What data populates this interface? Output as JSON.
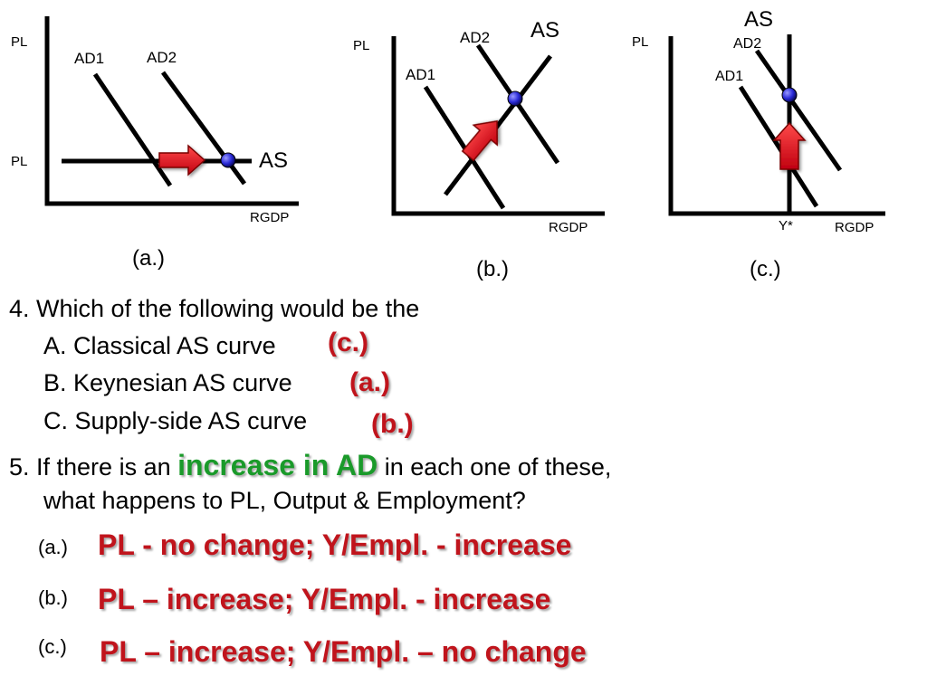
{
  "diagrams": [
    {
      "id": "a",
      "caption": "(a.)",
      "y_label": "PL",
      "price_level_label": "PL",
      "x_label": "RGDP",
      "ad1_label": "AD1",
      "ad2_label": "AD2",
      "as_label": "AS",
      "as_shape": "horizontal",
      "shift_arrow_direction": "right"
    },
    {
      "id": "b",
      "caption": "(b.)",
      "y_label": "PL",
      "x_label": "RGDP",
      "ad1_label": "AD1",
      "ad2_label": "AD2",
      "as_label": "AS",
      "as_shape": "upward-sloping",
      "shift_arrow_direction": "up-right"
    },
    {
      "id": "c",
      "caption": "(c.)",
      "y_label": "PL",
      "x_label": "RGDP",
      "full_employment_label": "Y*",
      "ad1_label": "AD1",
      "ad2_label": "AD2",
      "as_label": "AS",
      "as_shape": "vertical",
      "shift_arrow_direction": "up"
    }
  ],
  "question4": {
    "prompt": "4. Which of the following would be the",
    "options": [
      {
        "text": "A. Classical AS curve",
        "answer": "(c.)"
      },
      {
        "text": "B. Keynesian AS curve",
        "answer": "(a.)"
      },
      {
        "text": "C. Supply-side AS curve",
        "answer": "(b.)"
      }
    ]
  },
  "question5": {
    "prefix": "5. If there is an ",
    "highlight": "increase in AD",
    "suffix": " in each one of these,",
    "line2": "what happens to PL, Output & Employment?"
  },
  "answers5": [
    {
      "label": "(a.)",
      "text": "PL - no change; Y/Empl. - increase"
    },
    {
      "label": "(b.)",
      "text": "PL – increase;  Y/Empl. - increase"
    },
    {
      "label": "(c.)",
      "text": "PL – increase;  Y/Empl. – no change"
    }
  ],
  "colors": {
    "axis": "#000000",
    "arrow_fill": "#e8101a",
    "equilibrium_dot": "#2a2ad8",
    "answer_text": "#c0141c",
    "highlight_text": "#1a9a2a"
  }
}
